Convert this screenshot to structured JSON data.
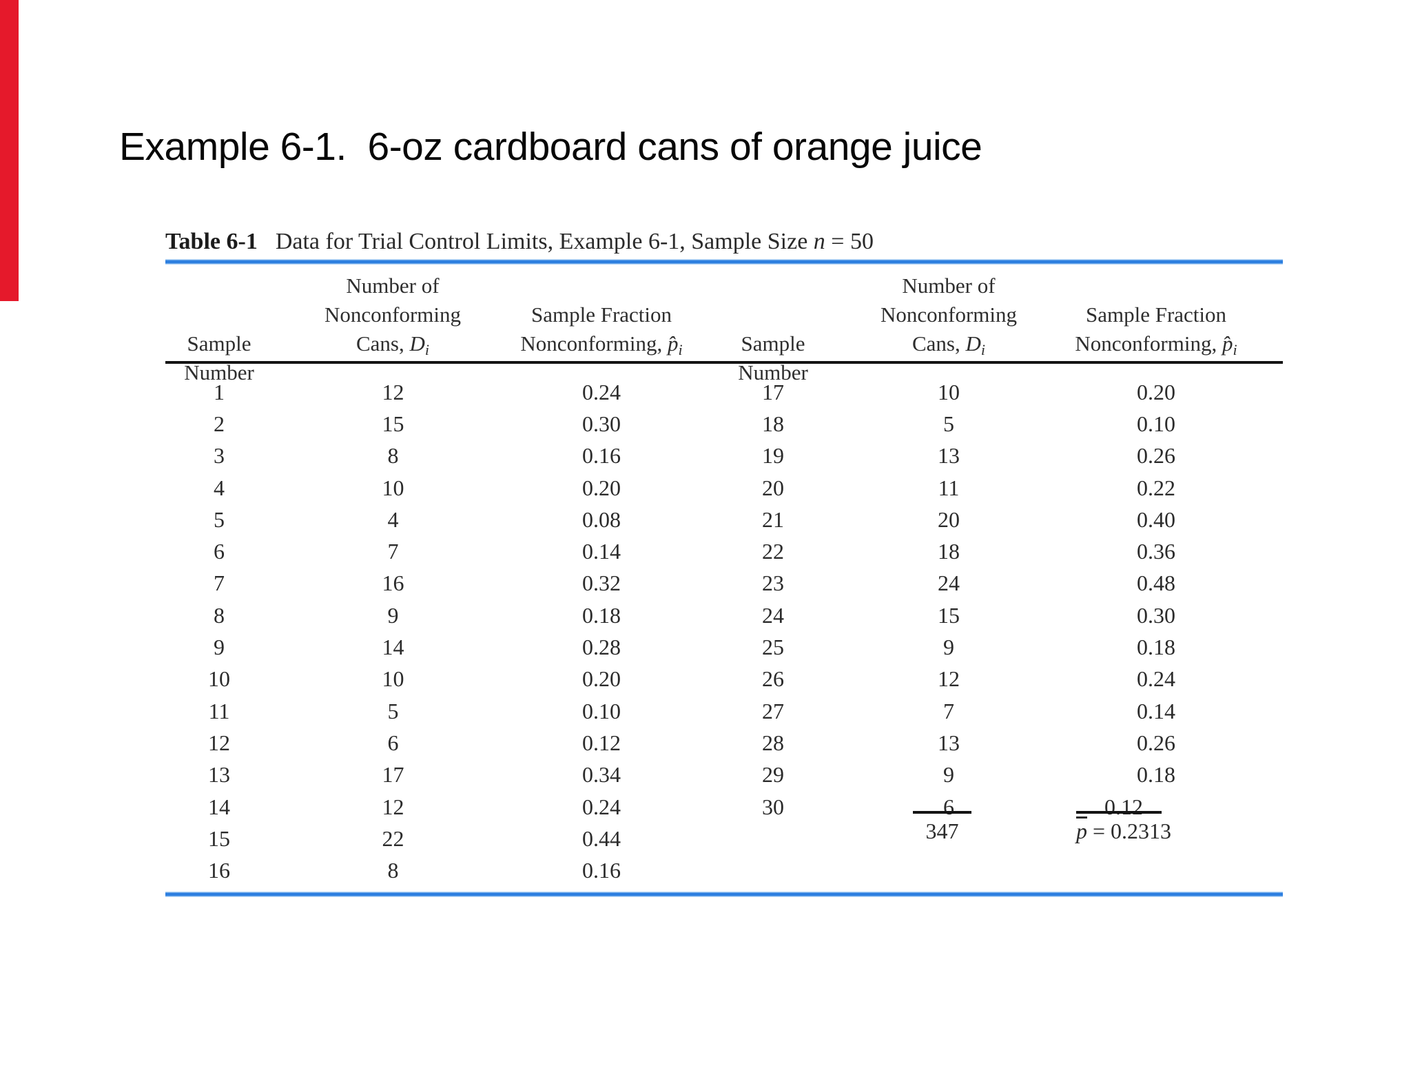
{
  "page": {
    "title": "Example 6-1.  6-oz cardboard cans of orange juice"
  },
  "colors": {
    "accent_red_bar": "#e5192b",
    "table_rule_blue": "#2d7fe0",
    "table_rule_black": "#141414"
  },
  "table": {
    "caption": {
      "label": "Table 6-1",
      "text_before_n": "Data for Trial Control Limits, Example 6-1, Sample Size ",
      "n_symbol": "n",
      "text_after_n": " = 50"
    },
    "headers": {
      "sample_line1": "Sample",
      "sample_line2": "Number",
      "noncf_line1": "Number of",
      "noncf_line2": "Nonconforming",
      "noncf_line3_prefix": "Cans, ",
      "noncf_symbol": "D",
      "noncf_sub": "i",
      "frac_line1": "Sample Fraction",
      "frac_line2_prefix": "Nonconforming, ",
      "frac_symbol": "p̂",
      "frac_sub": "i"
    },
    "left_rows": [
      [
        "1",
        "12",
        "0.24"
      ],
      [
        "2",
        "15",
        "0.30"
      ],
      [
        "3",
        "8",
        "0.16"
      ],
      [
        "4",
        "10",
        "0.20"
      ],
      [
        "5",
        "4",
        "0.08"
      ],
      [
        "6",
        "7",
        "0.14"
      ],
      [
        "7",
        "16",
        "0.32"
      ],
      [
        "8",
        "9",
        "0.18"
      ],
      [
        "9",
        "14",
        "0.28"
      ],
      [
        "10",
        "10",
        "0.20"
      ],
      [
        "11",
        "5",
        "0.10"
      ],
      [
        "12",
        "6",
        "0.12"
      ],
      [
        "13",
        "17",
        "0.34"
      ],
      [
        "14",
        "12",
        "0.24"
      ],
      [
        "15",
        "22",
        "0.44"
      ],
      [
        "16",
        "8",
        "0.16"
      ]
    ],
    "right_rows": [
      [
        "17",
        "10",
        "0.20"
      ],
      [
        "18",
        "5",
        "0.10"
      ],
      [
        "19",
        "13",
        "0.26"
      ],
      [
        "20",
        "11",
        "0.22"
      ],
      [
        "21",
        "20",
        "0.40"
      ],
      [
        "22",
        "18",
        "0.36"
      ],
      [
        "23",
        "24",
        "0.48"
      ],
      [
        "24",
        "15",
        "0.30"
      ],
      [
        "25",
        "9",
        "0.18"
      ],
      [
        "26",
        "12",
        "0.24"
      ],
      [
        "27",
        "7",
        "0.14"
      ],
      [
        "28",
        "13",
        "0.26"
      ],
      [
        "29",
        "9",
        "0.18"
      ],
      [
        "30",
        "6",
        "0.12"
      ]
    ],
    "totals": {
      "d_total": "347",
      "pbar_symbol": "p",
      "pbar_value": " = 0.2313"
    }
  }
}
